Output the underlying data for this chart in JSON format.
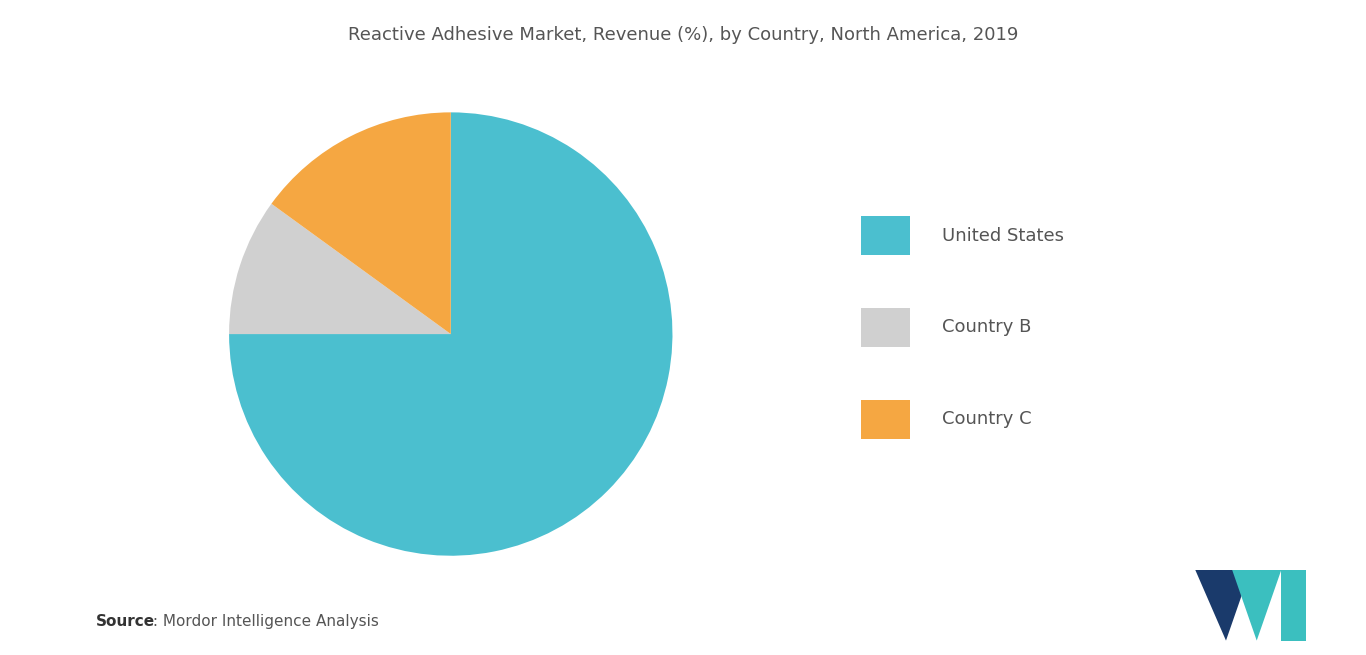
{
  "title": "Reactive Adhesive Market, Revenue (%), by Country, North America, 2019",
  "slices": [
    {
      "label": "United States",
      "value": 75,
      "color": "#4bbfcf"
    },
    {
      "label": "Country B",
      "value": 10,
      "color": "#d0d0d0"
    },
    {
      "label": "Country C",
      "value": 15,
      "color": "#f5a742"
    }
  ],
  "source_bold": "Source",
  "source_rest": " : Mordor Intelligence Analysis",
  "title_fontsize": 13,
  "legend_fontsize": 13,
  "source_fontsize": 11,
  "bg_color": "#ffffff",
  "start_angle": 90,
  "text_color": "#555555"
}
